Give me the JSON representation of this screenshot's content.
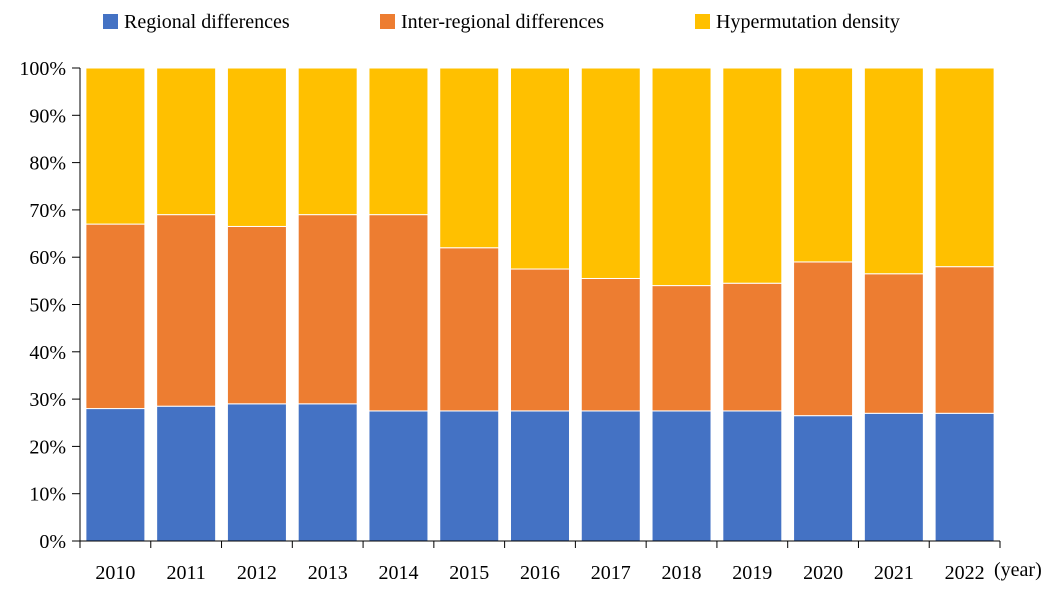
{
  "chart_data": {
    "type": "bar",
    "stacked": true,
    "percent_stacked": true,
    "categories": [
      "2010",
      "2011",
      "2012",
      "2013",
      "2014",
      "2015",
      "2016",
      "2017",
      "2018",
      "2019",
      "2020",
      "2021",
      "2022"
    ],
    "series": [
      {
        "name": "Regional differences",
        "color": "#4472C4",
        "values": [
          28,
          28.5,
          29,
          29,
          27.5,
          27.5,
          27.5,
          27.5,
          27.5,
          27.5,
          26.5,
          27,
          27
        ]
      },
      {
        "name": "Inter-regional differences",
        "color": "#ED7D31",
        "values": [
          39,
          40.5,
          37.5,
          40,
          41.5,
          34.5,
          30,
          28,
          26.5,
          27,
          32.5,
          29.5,
          31
        ]
      },
      {
        "name": "Hypermutation density",
        "color": "#FFC000",
        "values": [
          33,
          31,
          33.5,
          31,
          31,
          38,
          42.5,
          44.5,
          46,
          45.5,
          41,
          43.5,
          42
        ]
      }
    ],
    "y_ticks": [
      "0%",
      "10%",
      "20%",
      "30%",
      "40%",
      "50%",
      "60%",
      "70%",
      "80%",
      "90%",
      "100%"
    ],
    "ylim": [
      0,
      100
    ],
    "xlabel": "(year)",
    "ylabel": "",
    "grid": false,
    "legend_position": "top"
  }
}
